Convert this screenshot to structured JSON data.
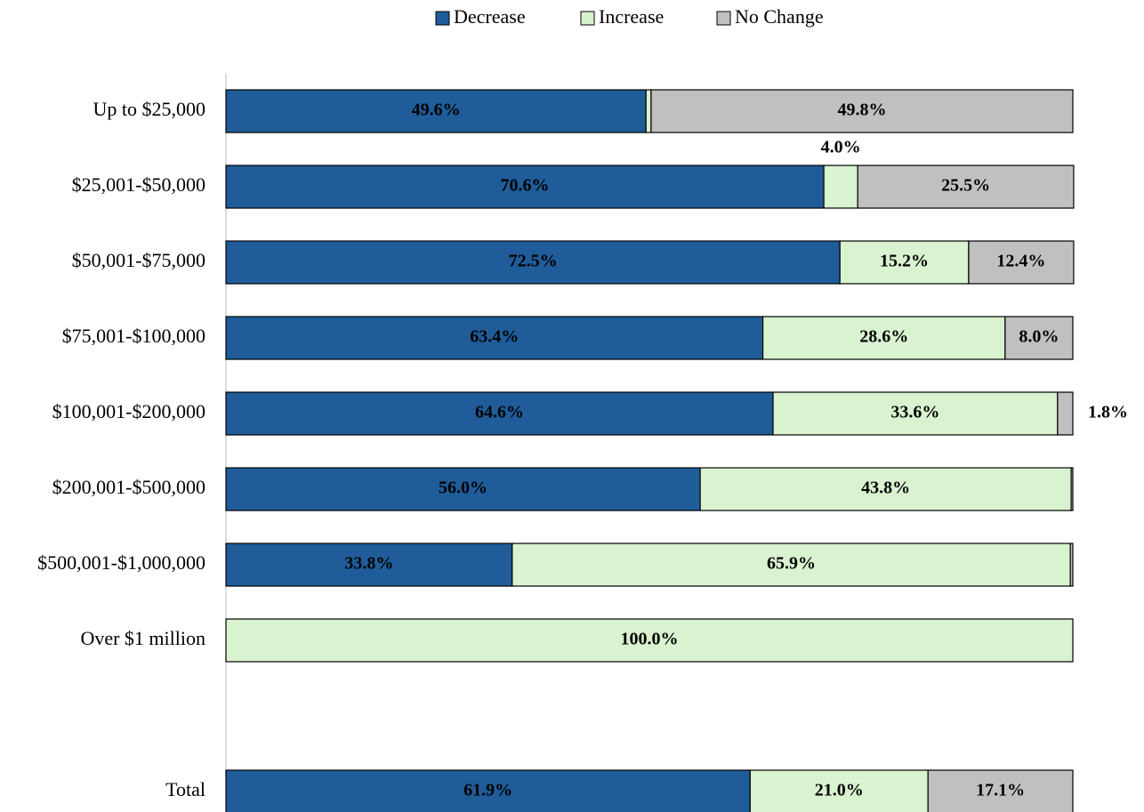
{
  "chart_data": {
    "type": "stacked-hbar",
    "categories": [
      "Up to $25,000",
      "$25,001-$50,000",
      "$50,001-$75,000",
      "$75,001-$100,000",
      "$100,001-$200,000",
      "$200,001-$500,000",
      "$500,001-$1,000,000",
      "Over $1 million",
      null,
      "Total"
    ],
    "xlim": [
      0,
      100
    ],
    "legend": "top",
    "series": [
      {
        "name": "Decrease",
        "color": "#1f5c99",
        "values": [
          49.6,
          70.6,
          72.5,
          63.4,
          64.6,
          56.0,
          33.8,
          0,
          null,
          61.9
        ],
        "value_labels": [
          "49.6%",
          "70.6%",
          "72.5%",
          "63.4%",
          "64.6%",
          "56.0%",
          "33.8%",
          null,
          null,
          "61.9%"
        ]
      },
      {
        "name": "Increase",
        "color": "#d9f2d0",
        "values": [
          0.6,
          4.0,
          15.2,
          28.6,
          33.6,
          43.8,
          65.9,
          100.0,
          null,
          21.0
        ],
        "value_labels": [
          null,
          "4.0%",
          "15.2%",
          "28.6%",
          "33.6%",
          "43.8%",
          "65.9%",
          "100.0%",
          null,
          "21.0%"
        ]
      },
      {
        "name": "No Change",
        "color": "#c0c0c0",
        "values": [
          49.8,
          25.5,
          12.4,
          8.0,
          1.8,
          0.2,
          0.3,
          0,
          null,
          17.1
        ],
        "value_labels": [
          "49.8%",
          "25.5%",
          "12.4%",
          "8.0%",
          "1.8%",
          null,
          null,
          null,
          null,
          "17.1%"
        ]
      }
    ]
  }
}
